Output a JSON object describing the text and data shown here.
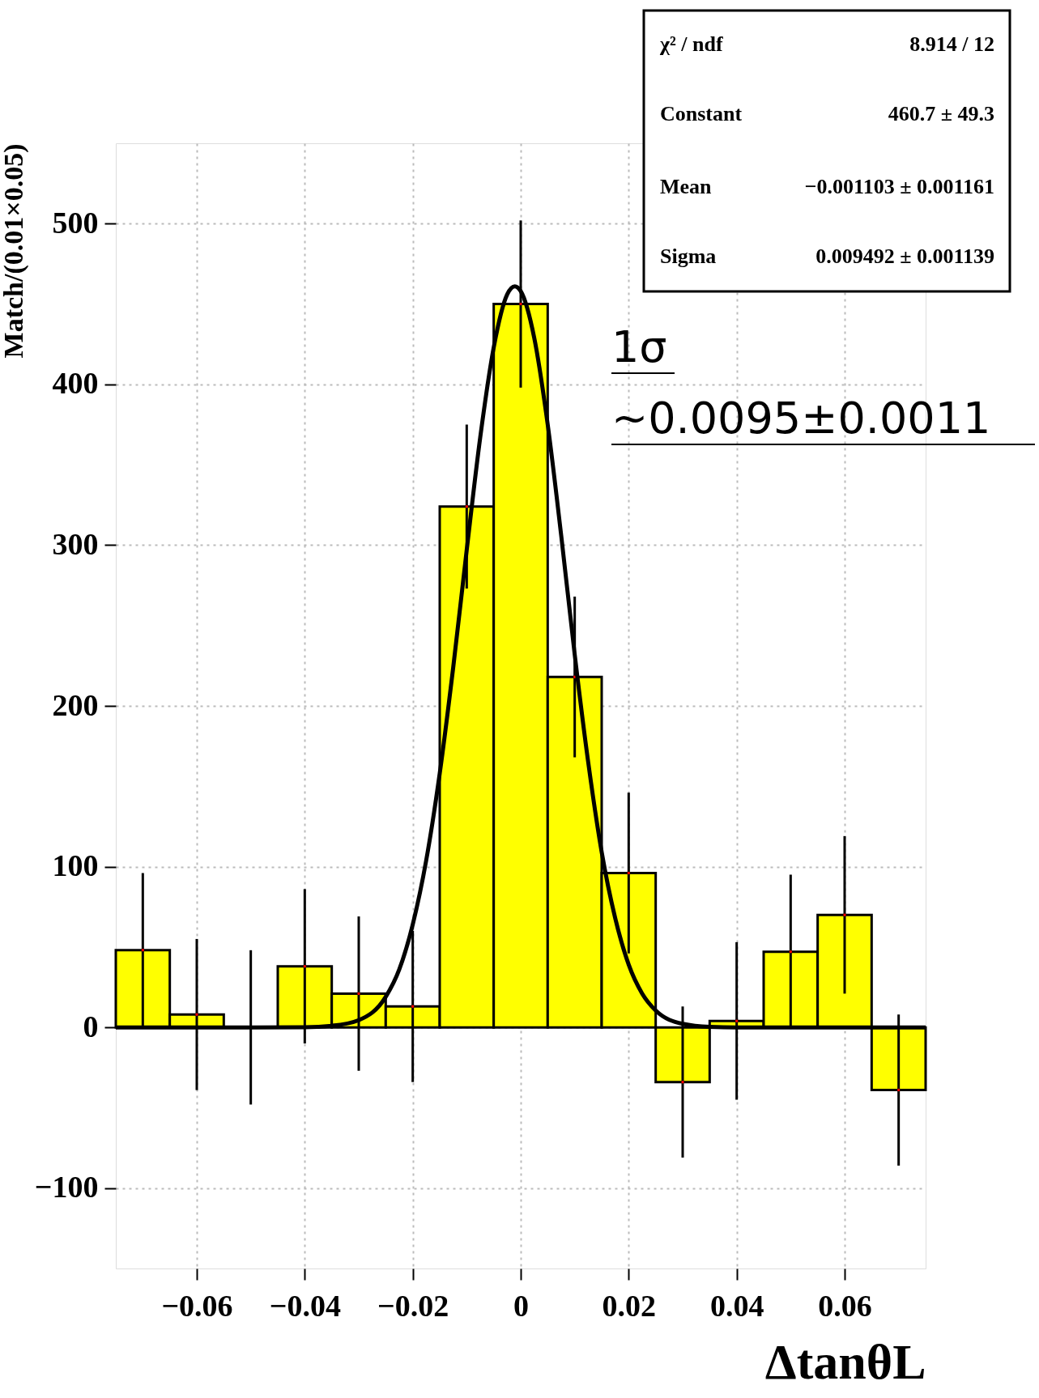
{
  "chart_data": {
    "type": "histogram",
    "xlabel": "ΔtanθL",
    "ylabel": "Match/(0.01×0.05)",
    "bins": [
      -0.075,
      -0.065,
      -0.055,
      -0.045,
      -0.035,
      -0.025,
      -0.015,
      -0.005,
      0.005,
      0.015,
      0.025,
      0.035,
      0.045,
      0.055,
      0.065,
      0.075
    ],
    "values": [
      48,
      8,
      0,
      38,
      21,
      13,
      324,
      450,
      218,
      96,
      -34,
      4,
      47,
      70,
      -39
    ],
    "errors": [
      48,
      47,
      48,
      48,
      48,
      47,
      51,
      52,
      50,
      50,
      47,
      49,
      48,
      49,
      47
    ],
    "color": "#ffff00",
    "series": [
      {
        "type": "line",
        "color": "#000000",
        "x": [
          -0.075,
          -0.05,
          -0.04,
          -0.035,
          -0.03,
          -0.025,
          -0.0225,
          -0.02,
          -0.0175,
          -0.015,
          -0.0125,
          -0.01,
          -0.0075,
          -0.005,
          -0.0025,
          -0.0011,
          0,
          0.0025,
          0.005,
          0.0075,
          0.01,
          0.0125,
          0.015,
          0.0175,
          0.02,
          0.0225,
          0.025,
          0.03,
          0.035,
          0.04,
          0.075
        ],
        "values": [
          0,
          0,
          0.1,
          1,
          4.5,
          19,
          36,
          64,
          104,
          158,
          224,
          297,
          367,
          423,
          456,
          461,
          458,
          429,
          375,
          306,
          232,
          165,
          109,
          68,
          39,
          21,
          10.5,
          2.2,
          0.3,
          0,
          0
        ]
      }
    ],
    "xlim": [
      -0.075,
      0.075
    ],
    "xticks": [
      {
        "value": -0.06,
        "label": "−0.06"
      },
      {
        "value": -0.04,
        "label": "−0.04"
      },
      {
        "value": -0.02,
        "label": "−0.02"
      },
      0,
      0.02,
      0.04,
      0.06
    ],
    "ylim": [
      -150,
      550
    ],
    "yticks": [
      {
        "value": -100,
        "label": "−100"
      },
      0,
      100,
      200,
      300,
      400,
      500
    ],
    "grid": true,
    "annotations": [
      "χ² / ndf",
      "8.914 / 12",
      "Constant",
      "460.7  ± 49.3",
      "Mean",
      "−0.001103  ± 0.001161",
      "Sigma",
      "0.009492  ± 0.001139",
      "1σ",
      "~0.0095±0.0011"
    ]
  }
}
